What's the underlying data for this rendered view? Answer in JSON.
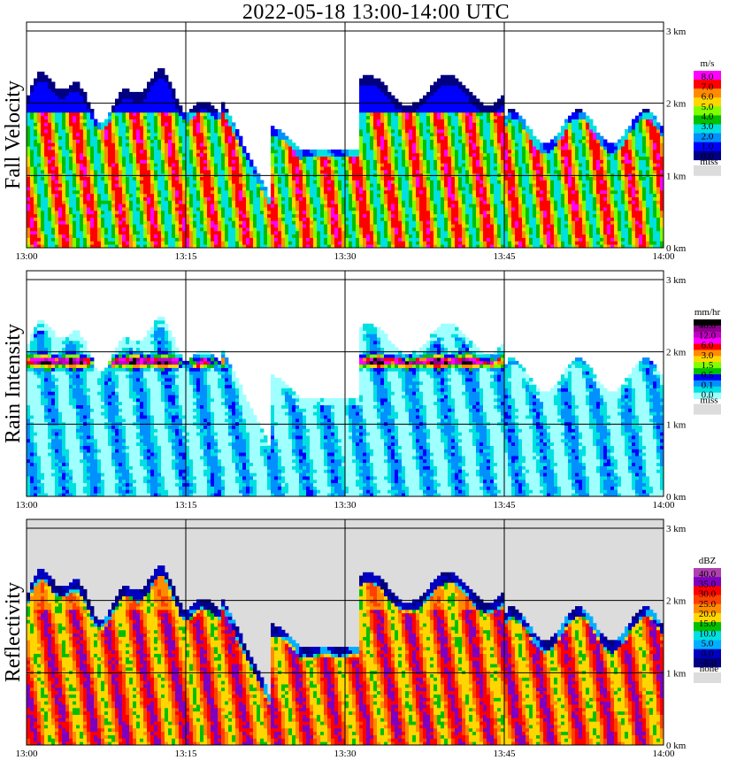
{
  "title": "2022-05-18   13:00-14:00 UTC",
  "colors": {
    "missing": "#dcdcdc",
    "grid": "#000000"
  },
  "chart_data": [
    {
      "type": "heatmap",
      "ylabel": "Fall Velocity",
      "x_ticks": [
        "13:00",
        "13:15",
        "13:30",
        "13:45",
        "14:00"
      ],
      "y_ticks": [
        "0 km",
        "1 km",
        "2 km",
        "3 km"
      ],
      "xlim": [
        "13:00",
        "14:00"
      ],
      "ylim_km": [
        0,
        3
      ],
      "legend": {
        "unit": "m/s",
        "labels": [
          "8.0",
          "7.0",
          "6.0",
          "5.0",
          "4.0",
          "3.0",
          "2.0",
          "1.0",
          "0.0"
        ],
        "colors": [
          "#ff00ff",
          "#ff0000",
          "#ff8c00",
          "#ffd700",
          "#7fff00",
          "#00c000",
          "#00e0e0",
          "#0090ff",
          "#0000ff",
          "#000080"
        ],
        "missing_label": "miss"
      }
    },
    {
      "type": "heatmap",
      "ylabel": "Rain Intensity",
      "x_ticks": [
        "13:00",
        "13:15",
        "13:30",
        "13:45",
        "14:00"
      ],
      "y_ticks": [
        "0 km",
        "1 km",
        "2 km",
        "3 km"
      ],
      "xlim": [
        "13:00",
        "14:00"
      ],
      "ylim_km": [
        0,
        3
      ],
      "legend": {
        "unit": "mm/hr",
        "labels": [
          "48.0",
          "12.0",
          "6.0",
          "3.0",
          "1.5",
          "0.5",
          "0.1",
          "0.0"
        ],
        "colors": [
          "#000000",
          "#8b008b",
          "#c000c0",
          "#ff00ff",
          "#ff0000",
          "#ff8c00",
          "#ffd700",
          "#7fff00",
          "#00c000",
          "#0000ff",
          "#0090ff",
          "#00e0e0",
          "#a0ffff"
        ],
        "missing_label": "miss"
      }
    },
    {
      "type": "heatmap",
      "ylabel": "Reflectivity",
      "x_ticks": [
        "13:00",
        "13:15",
        "13:30",
        "13:45",
        "14:00"
      ],
      "y_ticks": [
        "0 km",
        "1 km",
        "2 km",
        "3 km"
      ],
      "xlim": [
        "13:00",
        "14:00"
      ],
      "ylim_km": [
        0,
        3
      ],
      "legend": {
        "unit": "dBZ",
        "labels": [
          "40.0",
          "35.0",
          "30.0",
          "25.0",
          "20.0",
          "15.0",
          "10.0",
          "5.0",
          "0.0",
          "−5.0"
        ],
        "colors": [
          "#b040b0",
          "#8000c0",
          "#ff0000",
          "#ff4000",
          "#ff8c00",
          "#ffd700",
          "#00c000",
          "#00e0e0",
          "#00b0ff",
          "#0000c0",
          "#000080"
        ],
        "missing_label": "none"
      }
    }
  ]
}
